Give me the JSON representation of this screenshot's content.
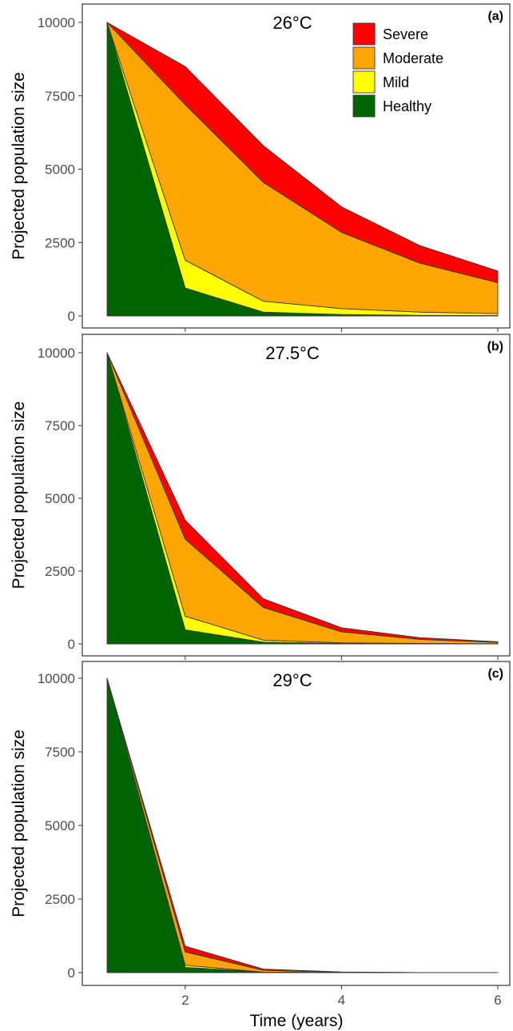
{
  "colors": {
    "Severe": "#ff0000",
    "Moderate": "#ffa500",
    "Mild": "#ffff00",
    "Healthy": "#006400"
  },
  "legend": [
    "Severe",
    "Moderate",
    "Mild",
    "Healthy"
  ],
  "xlabel": "Time (years)",
  "chart_data": [
    {
      "type": "area",
      "stacked": true,
      "panel_label": "(a)",
      "temperature_label": "26°C",
      "x": [
        1,
        2,
        3,
        4,
        5,
        6
      ],
      "xlim": [
        1,
        6
      ],
      "xticks": [
        2,
        4,
        6
      ],
      "ylim": [
        0,
        10000
      ],
      "yticks": [
        0,
        2500,
        5000,
        7500,
        10000
      ],
      "ylabel": "Projected population size",
      "xlabel": "",
      "legend_position": "top-right",
      "grid": false,
      "series": [
        {
          "name": "Healthy",
          "values": [
            10000,
            950,
            130,
            50,
            20,
            10
          ]
        },
        {
          "name": "Mild",
          "values": [
            0,
            950,
            370,
            200,
            110,
            70
          ]
        },
        {
          "name": "Moderate",
          "values": [
            0,
            5300,
            4050,
            2600,
            1670,
            1050
          ]
        },
        {
          "name": "Severe",
          "values": [
            0,
            1300,
            1250,
            870,
            600,
            400
          ]
        }
      ]
    },
    {
      "type": "area",
      "stacked": true,
      "panel_label": "(b)",
      "temperature_label": "27.5°C",
      "x": [
        1,
        2,
        3,
        4,
        5,
        6
      ],
      "xlim": [
        1,
        6
      ],
      "xticks": [
        2,
        4,
        6
      ],
      "ylim": [
        0,
        10000
      ],
      "yticks": [
        0,
        2500,
        5000,
        7500,
        10000
      ],
      "ylabel": "Projected population size",
      "xlabel": "",
      "grid": false,
      "series": [
        {
          "name": "Healthy",
          "values": [
            10000,
            480,
            60,
            15,
            5,
            2
          ]
        },
        {
          "name": "Mild",
          "values": [
            0,
            470,
            70,
            20,
            8,
            3
          ]
        },
        {
          "name": "Moderate",
          "values": [
            0,
            2650,
            1120,
            380,
            140,
            45
          ]
        },
        {
          "name": "Severe",
          "values": [
            0,
            650,
            300,
            140,
            60,
            25
          ]
        }
      ]
    },
    {
      "type": "area",
      "stacked": true,
      "panel_label": "(c)",
      "temperature_label": "29°C",
      "x": [
        1,
        2,
        3,
        4,
        5,
        6
      ],
      "xlim": [
        1,
        6
      ],
      "xticks": [
        2,
        4,
        6
      ],
      "ylim": [
        0,
        10000
      ],
      "yticks": [
        0,
        2500,
        5000,
        7500,
        10000
      ],
      "ylabel": "Projected population size",
      "xlabel": "Time (years)",
      "grid": false,
      "series": [
        {
          "name": "Healthy",
          "values": [
            10000,
            180,
            15,
            2,
            0,
            0
          ]
        },
        {
          "name": "Mild",
          "values": [
            0,
            70,
            5,
            1,
            0,
            0
          ]
        },
        {
          "name": "Moderate",
          "values": [
            0,
            450,
            60,
            10,
            2,
            0
          ]
        },
        {
          "name": "Severe",
          "values": [
            0,
            200,
            40,
            8,
            2,
            0
          ]
        }
      ]
    }
  ]
}
